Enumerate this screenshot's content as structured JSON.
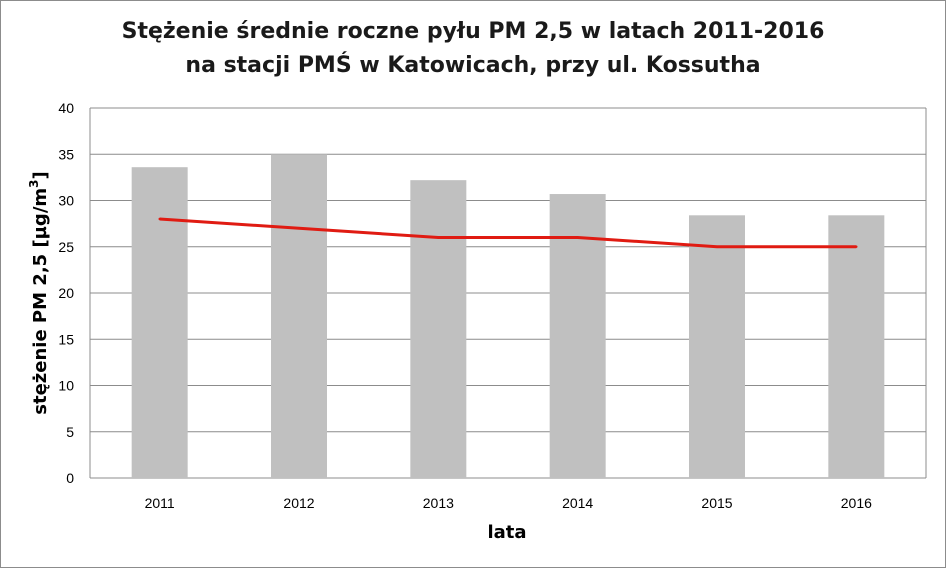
{
  "chart_data": {
    "type": "bar",
    "title_line1": "Stężenie średnie roczne pyłu PM 2,5 w latach 2011-2016",
    "title_line2": "na stacji PMŚ w Katowicach, przy ul. Kossutha",
    "xlabel": "lata",
    "ylabel_main": "stężenie  PM 2,5 [µg/m",
    "ylabel_sup": "3",
    "ylabel_end": "]",
    "categories": [
      "2011",
      "2012",
      "2013",
      "2014",
      "2015",
      "2016"
    ],
    "ylim": [
      0,
      40
    ],
    "yticks": [
      0,
      5,
      10,
      15,
      20,
      25,
      30,
      35,
      40
    ],
    "grid": true,
    "series": [
      {
        "type": "bar",
        "values": [
          33.6,
          35.0,
          32.2,
          30.7,
          28.4,
          28.4
        ],
        "color": "#c0c0c0"
      },
      {
        "type": "line",
        "values": [
          28,
          27,
          26,
          26,
          25,
          25
        ],
        "color": "#e01b12"
      }
    ]
  }
}
